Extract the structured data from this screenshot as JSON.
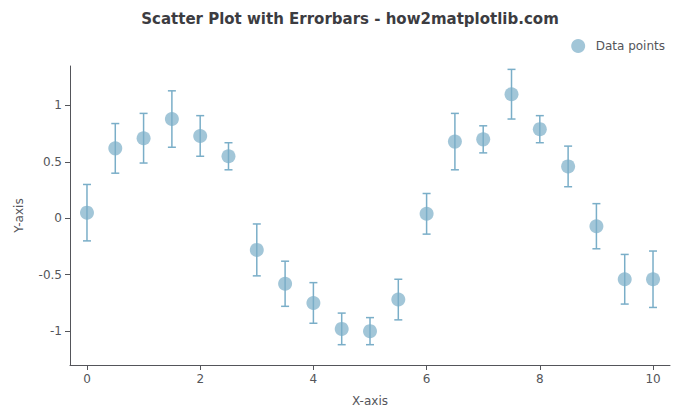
{
  "chart_data": {
    "type": "scatter",
    "title": "Scatter Plot with Errorbars - how2matplotlib.com",
    "xlabel": "X-axis",
    "ylabel": "Y-axis",
    "x": [
      0,
      0.5,
      1.0,
      1.5,
      2.0,
      2.5,
      3.0,
      3.5,
      4.0,
      4.5,
      5.0,
      5.5,
      6.0,
      6.5,
      7.0,
      7.5,
      8.0,
      8.5,
      9.0,
      9.5,
      10.0
    ],
    "series": [
      {
        "name": "Data points",
        "color": "#7aaec8",
        "marker": "circle",
        "values": [
          0.05,
          0.62,
          0.71,
          0.88,
          0.73,
          0.55,
          -0.28,
          -0.58,
          -0.75,
          -0.98,
          -1.0,
          -0.72,
          0.04,
          0.68,
          0.7,
          1.1,
          0.79,
          0.46,
          -0.07,
          -0.54,
          -0.54
        ],
        "yerr": [
          0.25,
          0.22,
          0.22,
          0.25,
          0.18,
          0.12,
          0.23,
          0.2,
          0.18,
          0.14,
          0.12,
          0.18,
          0.18,
          0.25,
          0.12,
          0.22,
          0.12,
          0.18,
          0.2,
          0.22,
          0.25
        ]
      }
    ],
    "xlim": [
      -0.3,
      10.3
    ],
    "ylim": [
      -1.3,
      1.35
    ],
    "xticks": [
      0,
      2,
      4,
      6,
      8,
      10
    ],
    "yticks": [
      -1,
      -0.5,
      0,
      0.5,
      1
    ],
    "grid": false,
    "legend": "upper right"
  }
}
